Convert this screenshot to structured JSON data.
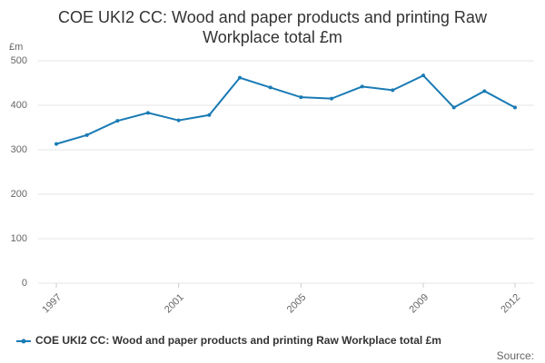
{
  "chart_data": {
    "type": "line",
    "title": "COE UKI2 CC: Wood and paper products and printing Raw Workplace total £m",
    "y_label": "£m",
    "source": "Source:",
    "x": [
      1997,
      1998,
      1999,
      2000,
      2001,
      2002,
      2003,
      2004,
      2005,
      2006,
      2007,
      2008,
      2009,
      2010,
      2011,
      2012
    ],
    "series": [
      {
        "name": "COE UKI2 CC: Wood and paper products and printing Raw Workplace total £m",
        "color": "#1a7bb5",
        "values": [
          313,
          333,
          365,
          383,
          366,
          378,
          462,
          440,
          418,
          415,
          442,
          434,
          467,
          395,
          432,
          395
        ]
      }
    ],
    "xlim": [
      1997,
      2012
    ],
    "xticks": [
      1997,
      2001,
      2005,
      2009,
      2012
    ],
    "ylim": [
      0,
      500
    ],
    "yticks": [
      0,
      100,
      200,
      300,
      400,
      500
    ],
    "grid": true
  }
}
